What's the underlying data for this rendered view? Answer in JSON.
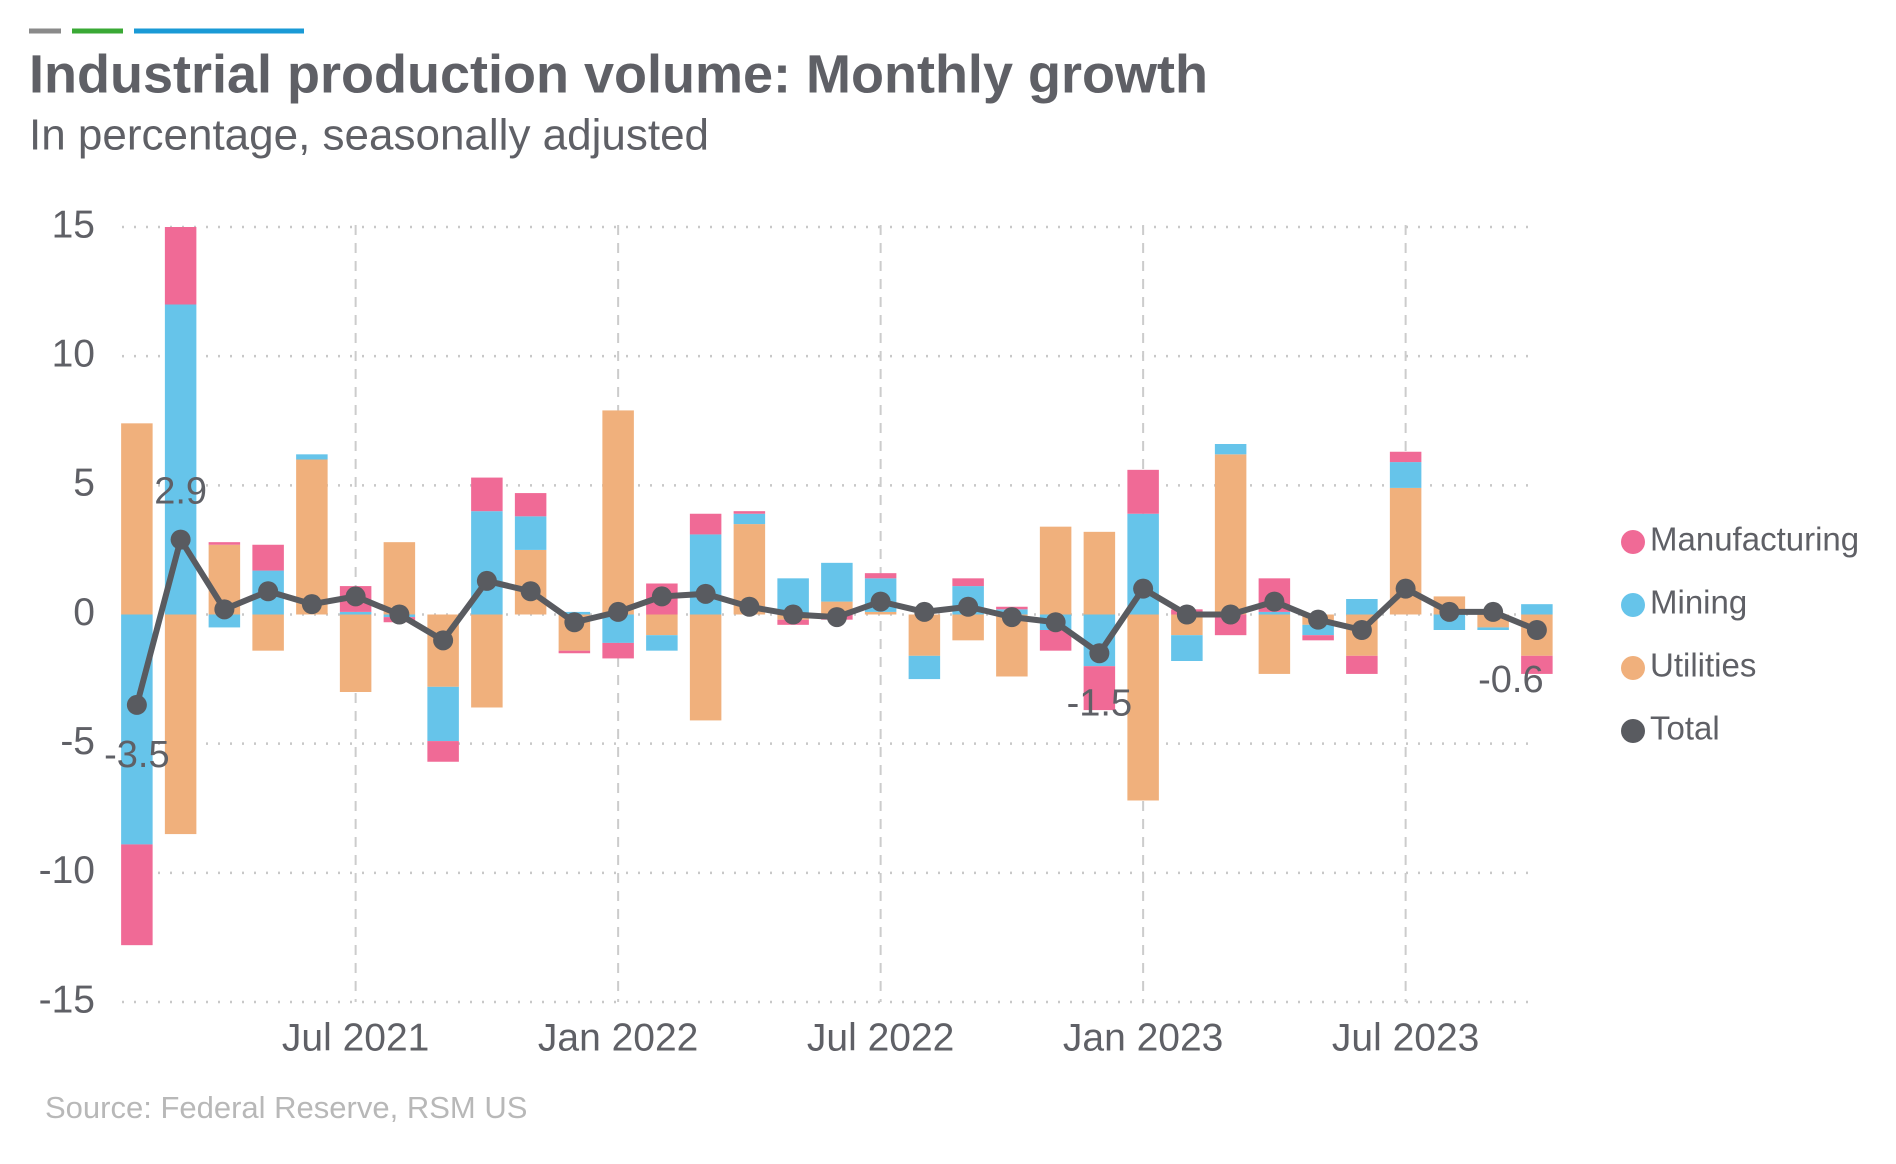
{
  "chart_data": {
    "type": "bar",
    "title": "Industrial production volume: Monthly growth",
    "subtitle": "In percentage, seasonally adjusted",
    "source": "Source: Federal Reserve, RSM US",
    "categories": [
      null,
      null,
      null,
      null,
      null,
      "Jul 2021",
      null,
      null,
      null,
      null,
      null,
      "Jan 2022",
      null,
      null,
      null,
      null,
      null,
      "Jul 2022",
      null,
      null,
      null,
      null,
      null,
      "Jan 2023",
      null,
      null,
      null,
      null,
      null,
      "Jul 2023",
      null,
      null,
      null
    ],
    "series": [
      {
        "name": "Manufacturing",
        "color": "#f06a96",
        "values": [
          -3.9,
          3.0,
          0.1,
          1.0,
          0.0,
          1.0,
          -0.2,
          -0.8,
          1.3,
          0.9,
          -0.1,
          -0.6,
          1.2,
          0.8,
          0.1,
          -0.2,
          -0.2,
          0.2,
          0.0,
          0.3,
          0.1,
          -0.8,
          -1.7,
          1.7,
          0.2,
          -0.8,
          1.3,
          -0.2,
          -0.7,
          0.4,
          0.0,
          0.0,
          -0.7
        ]
      },
      {
        "name": "Mining",
        "color": "#66c4ea",
        "values": [
          -8.9,
          12.0,
          -0.5,
          1.7,
          0.2,
          0.1,
          -0.1,
          -2.1,
          4.0,
          1.3,
          0.1,
          -1.1,
          -0.6,
          3.1,
          0.4,
          1.4,
          1.5,
          1.3,
          -0.9,
          1.1,
          0.2,
          -0.6,
          -2.0,
          3.9,
          -1.0,
          0.4,
          0.1,
          -0.4,
          0.6,
          1.0,
          -0.6,
          -0.1,
          0.4
        ]
      },
      {
        "name": "Utilities",
        "color": "#f0b07c",
        "values": [
          7.4,
          -8.5,
          2.7,
          -1.4,
          6.0,
          -3.0,
          2.8,
          -2.8,
          -3.6,
          2.5,
          -1.4,
          7.9,
          -0.8,
          -4.1,
          3.5,
          -0.2,
          0.5,
          0.1,
          -1.6,
          -1.0,
          -2.4,
          3.4,
          3.2,
          -7.2,
          -0.8,
          6.2,
          -2.3,
          -0.4,
          -1.6,
          4.9,
          0.7,
          -0.5,
          -1.6
        ]
      },
      {
        "name": "Total",
        "type": "line",
        "color": "#595b60",
        "values": [
          -3.5,
          2.9,
          0.2,
          0.9,
          0.4,
          0.7,
          0.0,
          -1.0,
          1.3,
          0.9,
          -0.3,
          0.1,
          0.7,
          0.8,
          0.3,
          0.0,
          -0.1,
          0.5,
          0.1,
          0.3,
          -0.1,
          -0.3,
          -1.5,
          1.0,
          0.0,
          0.0,
          0.5,
          -0.2,
          -0.6,
          1.0,
          0.1,
          0.1,
          -0.6
        ],
        "value_labels": [
          "-3.5",
          "2.9",
          null,
          null,
          null,
          null,
          null,
          null,
          null,
          null,
          null,
          null,
          null,
          null,
          null,
          null,
          null,
          null,
          null,
          null,
          null,
          null,
          "-1.5",
          null,
          null,
          null,
          null,
          null,
          null,
          null,
          null,
          null,
          "-0.6"
        ]
      }
    ],
    "ylim": [
      -15,
      15
    ],
    "yticks": [
      -15,
      -10,
      -5,
      0,
      5,
      10,
      15
    ],
    "grid": true,
    "legend": "right"
  }
}
